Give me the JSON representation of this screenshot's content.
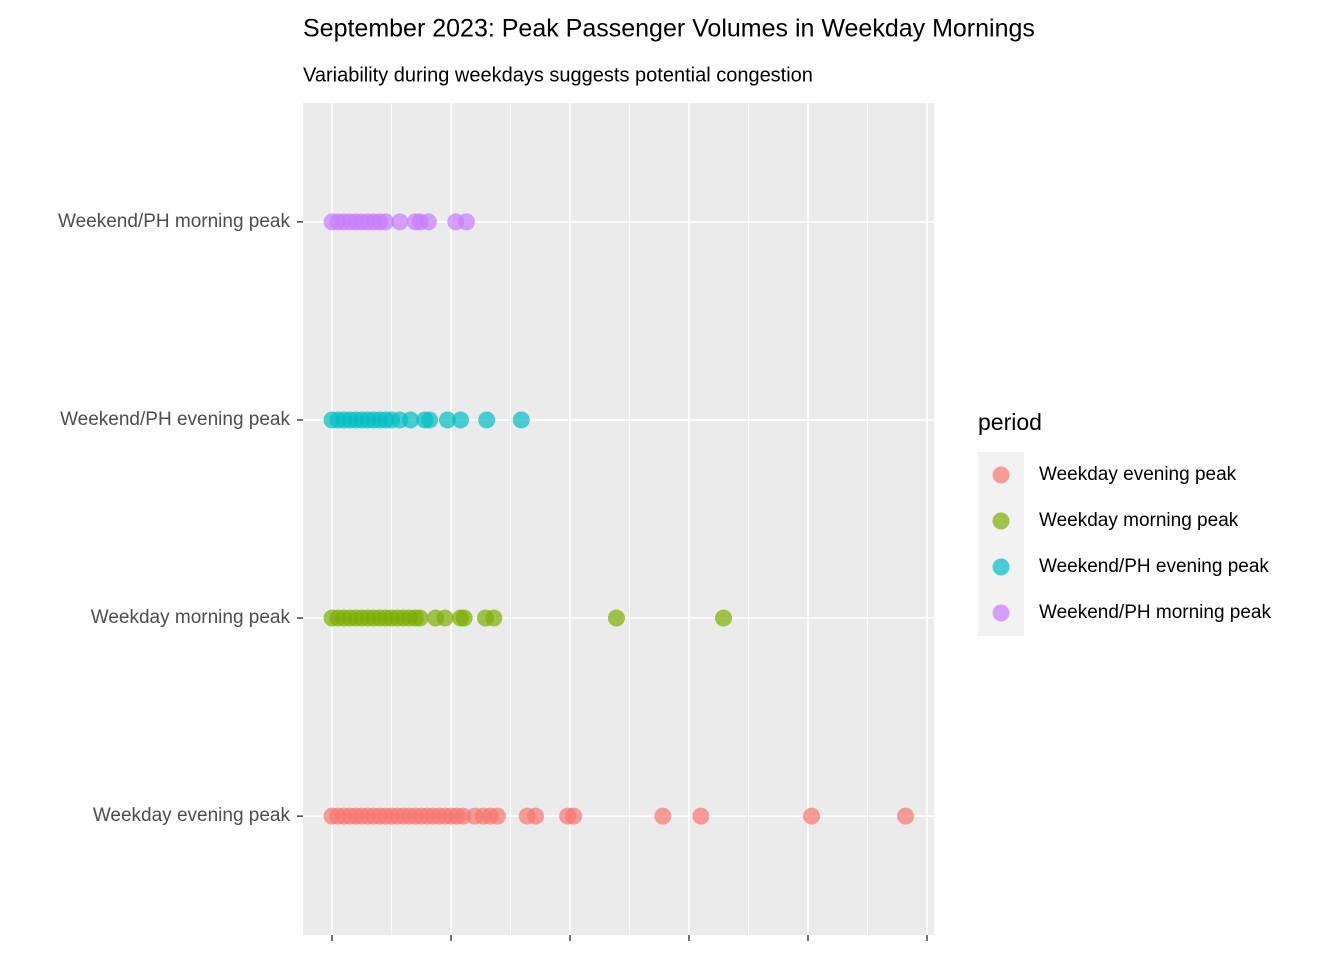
{
  "chart_data": {
    "type": "scatter",
    "title": "September 2023: Peak Passenger Volumes in Weekday Mornings",
    "subtitle": "Variability during weekdays suggests potential congestion",
    "categories": [
      "Weekday evening peak",
      "Weekday morning peak",
      "Weekend/PH evening peak",
      "Weekend/PH morning peak"
    ],
    "legend_title": "period",
    "legend_position": "right",
    "grid": true,
    "xlim": [
      -0.244,
      5.059
    ],
    "xticks": [
      0,
      1,
      2,
      3,
      4,
      5
    ],
    "series": [
      {
        "name": "Weekday evening peak",
        "color": "#F8766D",
        "values": [
          0,
          0.05,
          0.1,
          0.15,
          0.2,
          0.25,
          0.3,
          0.35,
          0.4,
          0.45,
          0.5,
          0.55,
          0.6,
          0.65,
          0.7,
          0.75,
          0.8,
          0.85,
          0.9,
          0.95,
          1.0,
          1.05,
          1.1,
          1.2,
          1.27,
          1.33,
          1.39,
          1.64,
          1.71,
          1.98,
          2.03,
          2.78,
          3.1,
          4.03,
          4.82
        ]
      },
      {
        "name": "Weekday morning peak",
        "color": "#7CAE00",
        "values": [
          0,
          0.05,
          0.1,
          0.15,
          0.2,
          0.25,
          0.3,
          0.35,
          0.4,
          0.45,
          0.5,
          0.55,
          0.6,
          0.65,
          0.7,
          0.74,
          0.87,
          0.95,
          1.08,
          1.11,
          1.29,
          1.36,
          2.39,
          3.29
        ]
      },
      {
        "name": "Weekend/PH evening peak",
        "color": "#00BFC4",
        "values": [
          0,
          0.05,
          0.1,
          0.15,
          0.2,
          0.25,
          0.3,
          0.35,
          0.4,
          0.45,
          0.5,
          0.57,
          0.66,
          0.78,
          0.82,
          0.97,
          1.08,
          1.3,
          1.59
        ]
      },
      {
        "name": "Weekend/PH morning peak",
        "color": "#C77CFF",
        "values": [
          0,
          0.05,
          0.1,
          0.15,
          0.2,
          0.25,
          0.3,
          0.35,
          0.4,
          0.45,
          0.57,
          0.7,
          0.74,
          0.81,
          1.04,
          1.13
        ]
      }
    ]
  }
}
